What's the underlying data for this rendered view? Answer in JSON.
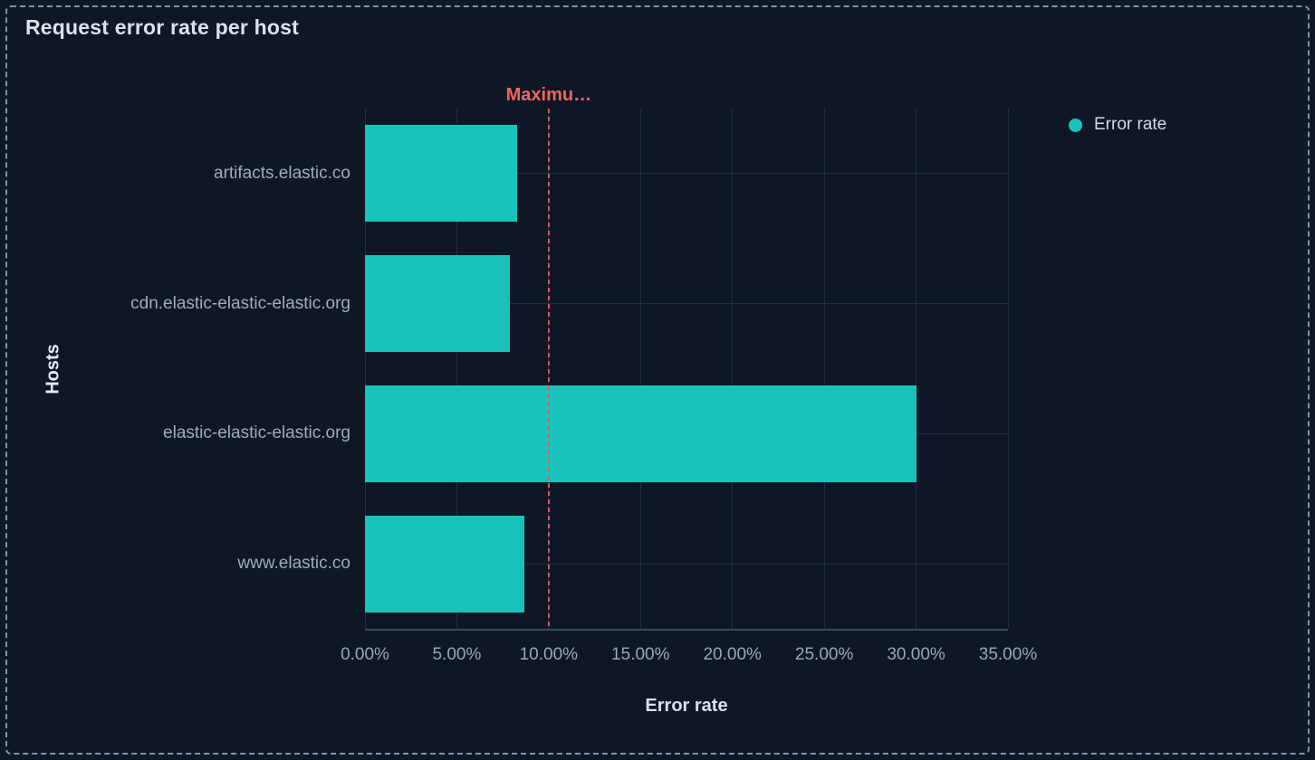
{
  "panel": {
    "title": "Request error rate per host"
  },
  "chart_data": {
    "type": "bar",
    "orientation": "horizontal",
    "title": "Request error rate per host",
    "categories": [
      "artifacts.elastic.co",
      "cdn.elastic-elastic-elastic.org",
      "elastic-elastic-elastic.org",
      "www.elastic.co"
    ],
    "series": [
      {
        "name": "Error rate",
        "values": [
          8.3,
          7.9,
          30.0,
          8.7
        ],
        "unit": "%"
      }
    ],
    "xlabel": "Error rate",
    "ylabel": "Hosts",
    "xlim": [
      0,
      35
    ],
    "x_ticks": [
      {
        "value": 0,
        "label": "0.00%"
      },
      {
        "value": 5,
        "label": "5.00%"
      },
      {
        "value": 10,
        "label": "10.00%"
      },
      {
        "value": 15,
        "label": "15.00%"
      },
      {
        "value": 20,
        "label": "20.00%"
      },
      {
        "value": 25,
        "label": "25.00%"
      },
      {
        "value": 30,
        "label": "30.00%"
      },
      {
        "value": 35,
        "label": "35.00%"
      }
    ],
    "grid": true,
    "legend_position": "top-right",
    "annotations": [
      {
        "type": "vline",
        "value": 10,
        "label": "Maximu…",
        "line_style": "dashed"
      }
    ],
    "colors": {
      "bar": "#19c3bb",
      "background": "#0e1726",
      "grid": "#212d44",
      "axis_line": "#3b4764",
      "tick_text": "#9aa6bc",
      "category_text": "#a0abc0",
      "title_text": "#dbe2ee",
      "annotation": "#f3655d",
      "annotation_line": "#e25a4f",
      "panel_border": "#8093ae"
    }
  },
  "legend": {
    "items": [
      {
        "label": "Error rate",
        "color": "#19c3bb"
      }
    ]
  }
}
